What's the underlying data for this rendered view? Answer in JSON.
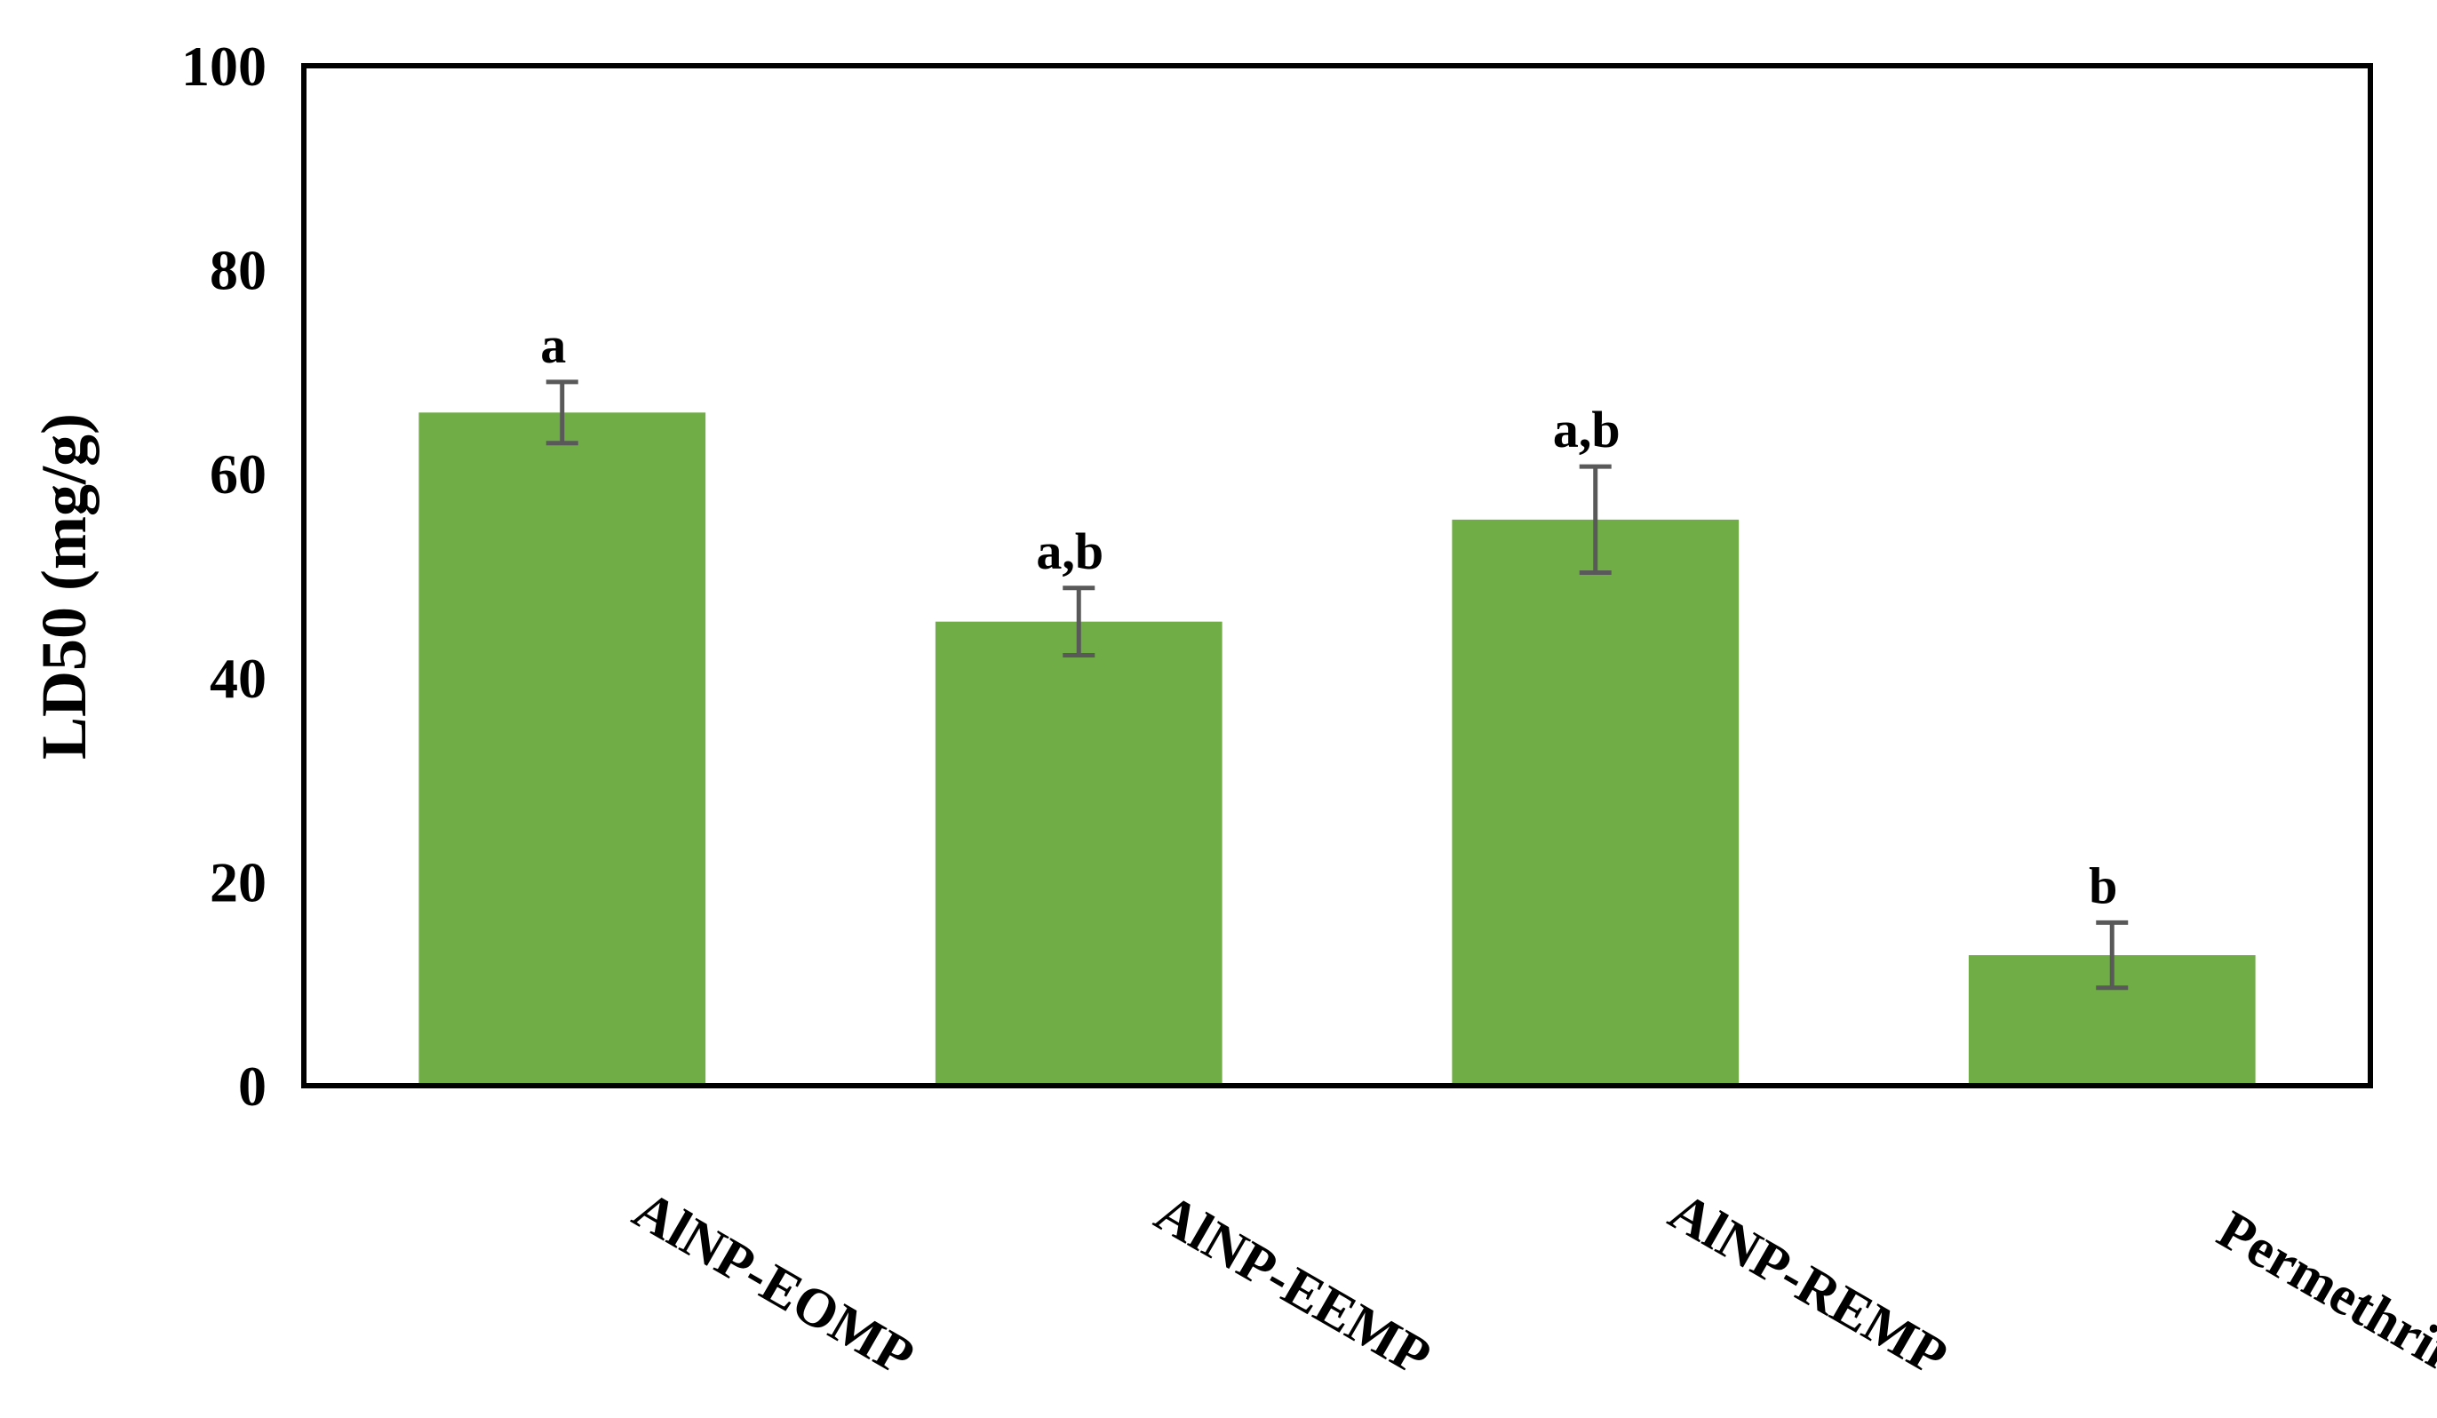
{
  "chart_data": {
    "type": "bar",
    "title": "",
    "xlabel": "",
    "ylabel": "LD50 (mg/g)",
    "ylim": [
      0,
      100
    ],
    "yticks": [
      0,
      20,
      40,
      60,
      80,
      100
    ],
    "grid": false,
    "legend": "none",
    "categories": [
      "AlNP-EOMP",
      "AlNP-EEMP",
      "AlNP-REMP",
      "Permethrin"
    ],
    "values": [
      66,
      45.5,
      55.5,
      12.8
    ],
    "error_bars": [
      3,
      3.3,
      5.2,
      3.2
    ],
    "annotations": [
      "a",
      "a,b",
      "a,b",
      "b"
    ],
    "colors": {
      "bar": "#70AD47",
      "error_bar": "#595959",
      "frame": "#000000"
    }
  }
}
